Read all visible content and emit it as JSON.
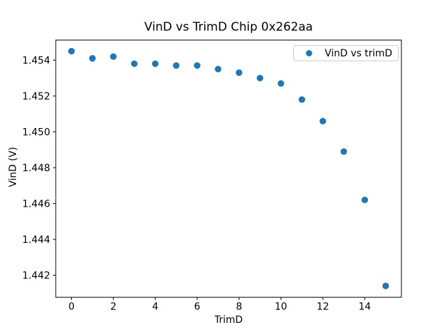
{
  "chart_data": {
    "type": "scatter",
    "title": "VinD vs TrimD Chip 0x262aa",
    "xlabel": "TrimD",
    "ylabel": "VinD (V)",
    "legend": {
      "position": "upper right",
      "entries": [
        {
          "label": "VinD vs trimD",
          "marker": "dot",
          "marker_color": "#1f77b4"
        }
      ]
    },
    "x": [
      0,
      1,
      2,
      3,
      4,
      5,
      6,
      7,
      8,
      9,
      10,
      11,
      12,
      13,
      14,
      15
    ],
    "series": [
      {
        "name": "VinD vs trimD",
        "color": "#1f77b4",
        "values": [
          1.4545,
          1.4541,
          1.4542,
          1.4538,
          1.4538,
          1.4537,
          1.4537,
          1.4535,
          1.4533,
          1.453,
          1.4527,
          1.4518,
          1.4506,
          1.4489,
          1.4462,
          1.4414
        ]
      }
    ],
    "xlim": [
      -0.75,
      15.75
    ],
    "ylim": [
      1.44077,
      1.45512
    ],
    "xticks": [
      0,
      2,
      4,
      6,
      8,
      10,
      12,
      14
    ],
    "yticks": [
      1.442,
      1.444,
      1.446,
      1.448,
      1.45,
      1.452,
      1.454
    ],
    "ytick_decimals": 3,
    "grid": false,
    "marker_diameter_px": 9.4,
    "colors": {
      "marker": "#1f77b4",
      "axis": "#000000",
      "text": "#000000",
      "legend_border": "#cccccc",
      "background": "#ffffff"
    }
  }
}
